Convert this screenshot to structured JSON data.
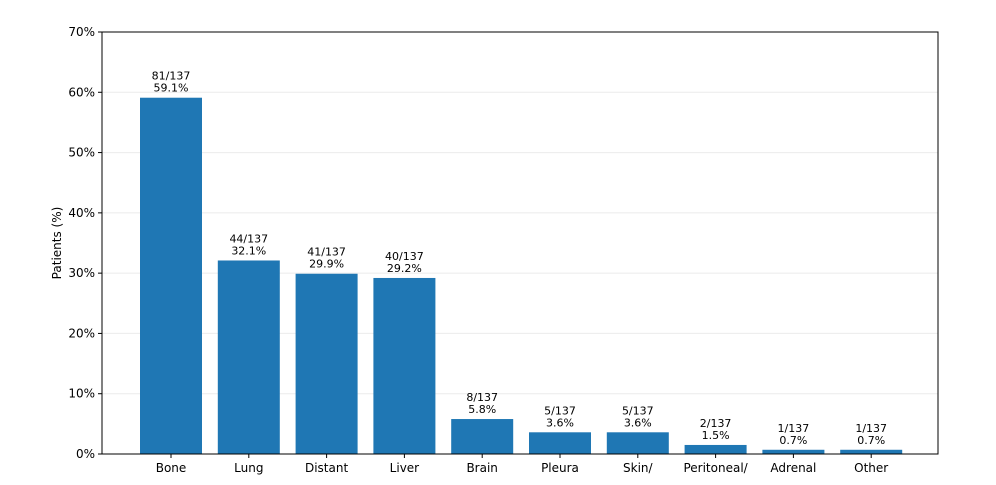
{
  "chart_data": {
    "type": "bar",
    "categories": [
      "Bone",
      "Lung",
      "Distant",
      "Liver",
      "Brain",
      "Pleura",
      "Skin/",
      "Peritoneal/",
      "Adrenal",
      "Other"
    ],
    "values": [
      59.1,
      32.1,
      29.9,
      29.2,
      5.8,
      3.6,
      3.6,
      1.5,
      0.7,
      0.7
    ],
    "counts": [
      "81/137",
      "44/137",
      "41/137",
      "40/137",
      "8/137",
      "5/137",
      "5/137",
      "2/137",
      "1/137",
      "1/137"
    ],
    "value_labels": [
      "59.1%",
      "32.1%",
      "29.9%",
      "29.2%",
      "5.8%",
      "3.6%",
      "3.6%",
      "1.5%",
      "0.7%",
      "0.7%"
    ],
    "ylabel": "Patients (%)",
    "ylim": [
      0,
      70
    ],
    "yticks": [
      0,
      10,
      20,
      30,
      40,
      50,
      60,
      70
    ],
    "ytick_labels": [
      "0%",
      "10%",
      "20%",
      "30%",
      "40%",
      "50%",
      "60%",
      "70%"
    ],
    "grid": "y",
    "bar_color": "#1f77b4"
  }
}
